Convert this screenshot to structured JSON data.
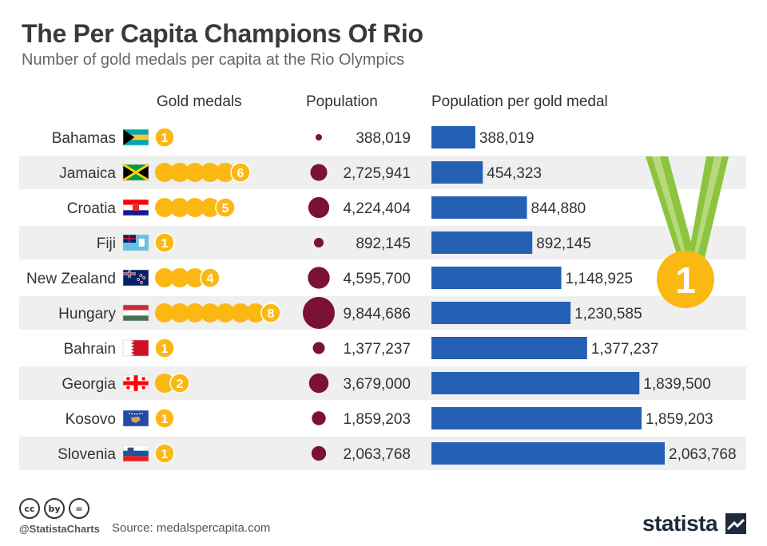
{
  "title": "The Per Capita Champions Of Rio",
  "subtitle": "Number of gold medals per capita at the Rio Olympics",
  "headers": {
    "gold": "Gold medals",
    "population": "Population",
    "per_medal": "Population per gold medal"
  },
  "footer": {
    "handle": "@StatistaCharts",
    "source": "Source: medalspercapita.com",
    "brand": "statista",
    "license_icons": [
      "cc",
      "by",
      "="
    ]
  },
  "colors": {
    "bar": "#2460b5",
    "bubble": "#7b1136",
    "medal": "#fbb812",
    "row_band": "#efefef",
    "ribbon": "#8cc43f",
    "ribbon_light": "#b6d97a"
  },
  "decoration": {
    "medal_number": "1"
  },
  "chart_data": {
    "type": "bar",
    "title": "The Per Capita Champions Of Rio",
    "xlabel": "Population per gold medal",
    "ylabel": "",
    "categories": [
      "Bahamas",
      "Jamaica",
      "Croatia",
      "Fiji",
      "New Zealand",
      "Hungary",
      "Bahrain",
      "Georgia",
      "Kosovo",
      "Slovenia"
    ],
    "series": [
      {
        "name": "Gold medals",
        "values": [
          1,
          6,
          5,
          1,
          4,
          8,
          1,
          2,
          1,
          1
        ]
      },
      {
        "name": "Population",
        "values": [
          388019,
          2725941,
          4224404,
          892145,
          4595700,
          9844686,
          1377237,
          3679000,
          1859203,
          2063768
        ]
      },
      {
        "name": "Population per gold medal",
        "values": [
          388019,
          454323,
          844880,
          892145,
          1148925,
          1230585,
          1377237,
          1839500,
          1859203,
          2063768
        ]
      }
    ],
    "flags": [
      "bahamas-flag",
      "jamaica-flag",
      "croatia-flag",
      "fiji-flag",
      "new-zealand-flag",
      "hungary-flag",
      "bahrain-flag",
      "georgia-flag",
      "kosovo-flag",
      "slovenia-flag"
    ]
  }
}
